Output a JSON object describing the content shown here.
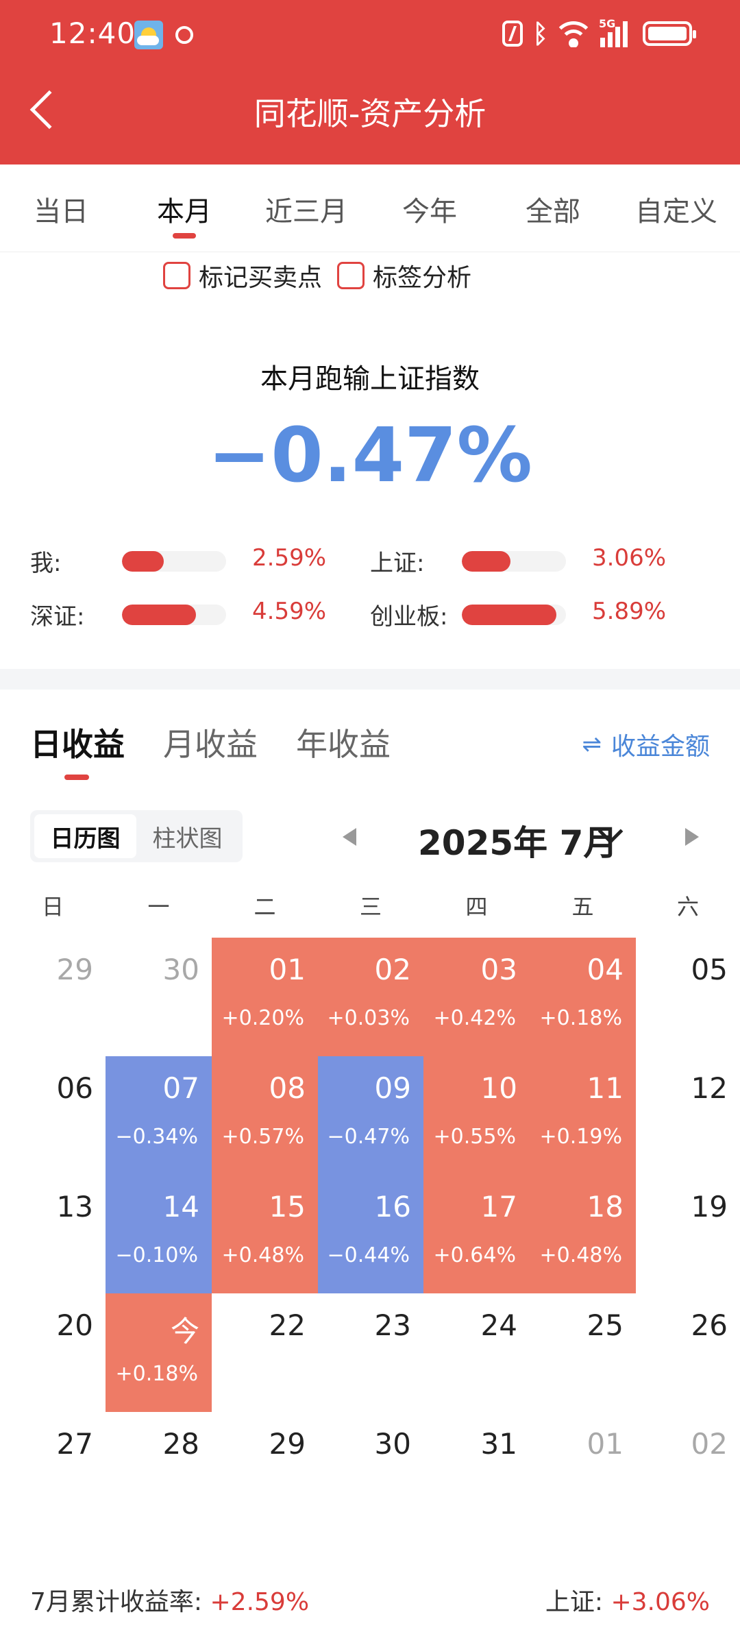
{
  "status_bar": {
    "time": "12:40",
    "network": "5G"
  },
  "header": {
    "title": "同花顺-资产分析"
  },
  "tabs": [
    {
      "label": "当日",
      "active": false
    },
    {
      "label": "本月",
      "active": true
    },
    {
      "label": "近三月",
      "active": false
    },
    {
      "label": "今年",
      "active": false
    },
    {
      "label": "全部",
      "active": false
    },
    {
      "label": "自定义",
      "active": false
    }
  ],
  "checkboxes": [
    {
      "label": "标记买卖点",
      "checked": false
    },
    {
      "label": "标签分析",
      "checked": false
    }
  ],
  "summary": {
    "title": "本月跑输上证指数",
    "value": "−0.47%"
  },
  "comparison": [
    {
      "label": "我:",
      "value": "2.59%",
      "pct": 2.59
    },
    {
      "label": "上证:",
      "value": "3.06%",
      "pct": 3.06
    },
    {
      "label": "深证:",
      "value": "4.59%",
      "pct": 4.59
    },
    {
      "label": "创业板:",
      "value": "5.89%",
      "pct": 5.89
    }
  ],
  "returns_tabs": [
    {
      "label": "日收益",
      "active": true
    },
    {
      "label": "月收益",
      "active": false
    },
    {
      "label": "年收益",
      "active": false
    }
  ],
  "amount_toggle": {
    "icon": "swap-icon",
    "label": "收益金额"
  },
  "view_switch": [
    {
      "label": "日历图",
      "active": true
    },
    {
      "label": "柱状图",
      "active": false
    }
  ],
  "month_label": "2025年 7月",
  "weekdays": [
    "日",
    "一",
    "二",
    "三",
    "四",
    "五",
    "六"
  ],
  "calendar": [
    [
      {
        "day": "29",
        "other": true
      },
      {
        "day": "30",
        "other": true
      },
      {
        "day": "01",
        "ret": "+0.20%",
        "type": "pos"
      },
      {
        "day": "02",
        "ret": "+0.03%",
        "type": "pos"
      },
      {
        "day": "03",
        "ret": "+0.42%",
        "type": "pos"
      },
      {
        "day": "04",
        "ret": "+0.18%",
        "type": "pos"
      },
      {
        "day": "05"
      }
    ],
    [
      {
        "day": "06"
      },
      {
        "day": "07",
        "ret": "−0.34%",
        "type": "neg"
      },
      {
        "day": "08",
        "ret": "+0.57%",
        "type": "pos"
      },
      {
        "day": "09",
        "ret": "−0.47%",
        "type": "neg"
      },
      {
        "day": "10",
        "ret": "+0.55%",
        "type": "pos"
      },
      {
        "day": "11",
        "ret": "+0.19%",
        "type": "pos"
      },
      {
        "day": "12"
      }
    ],
    [
      {
        "day": "13"
      },
      {
        "day": "14",
        "ret": "−0.10%",
        "type": "neg"
      },
      {
        "day": "15",
        "ret": "+0.48%",
        "type": "pos"
      },
      {
        "day": "16",
        "ret": "−0.44%",
        "type": "neg"
      },
      {
        "day": "17",
        "ret": "+0.64%",
        "type": "pos"
      },
      {
        "day": "18",
        "ret": "+0.48%",
        "type": "pos"
      },
      {
        "day": "19"
      }
    ],
    [
      {
        "day": "20"
      },
      {
        "day": "今",
        "ret": "+0.18%",
        "type": "pos"
      },
      {
        "day": "22"
      },
      {
        "day": "23"
      },
      {
        "day": "24"
      },
      {
        "day": "25"
      },
      {
        "day": "26"
      }
    ],
    [
      {
        "day": "27"
      },
      {
        "day": "28"
      },
      {
        "day": "29"
      },
      {
        "day": "30"
      },
      {
        "day": "31"
      },
      {
        "day": "01",
        "other": true
      },
      {
        "day": "02",
        "other": true
      }
    ]
  ],
  "footer": {
    "cumulative_label": "7月累计收益率:",
    "cumulative_value": "+2.59%",
    "index_label": "上证:",
    "index_value": "+3.06%"
  },
  "colors": {
    "brand_red": "#e04340",
    "positive_cell": "#ee7b66",
    "negative_cell": "#7893e0",
    "negative_text": "#5a8ee0"
  }
}
